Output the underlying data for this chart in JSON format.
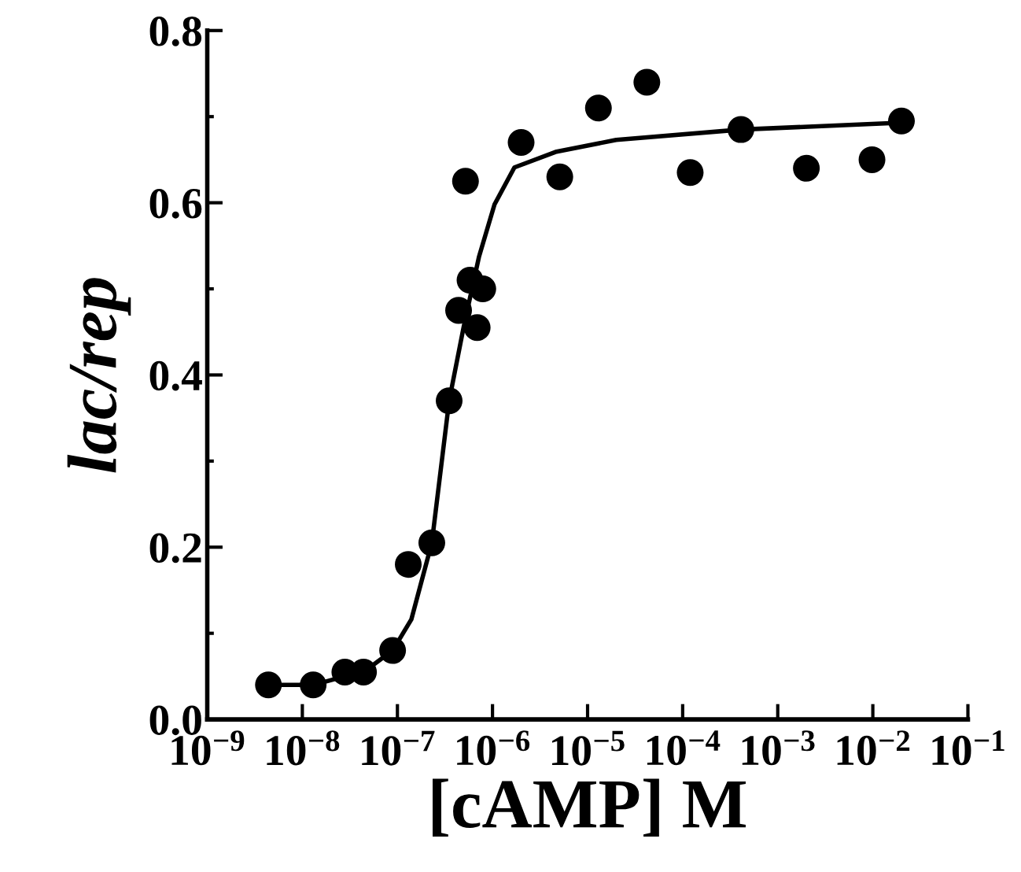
{
  "chart_data": {
    "type": "scatter",
    "xlabel": "[cAMP] M",
    "ylabel": "lac/rep",
    "log": "x",
    "grid": false,
    "legend": false,
    "xlim": [
      1e-09,
      0.1
    ],
    "ylim": [
      0,
      0.8
    ],
    "xticks": [
      {
        "value": 1e-09,
        "label": "10$^{−9}$"
      },
      {
        "value": 1e-08,
        "label": "10$^{−8}$"
      },
      {
        "value": 1e-07,
        "label": "10$^{−7}$"
      },
      {
        "value": 1e-06,
        "label": "10$^{−6}$"
      },
      {
        "value": 1e-05,
        "label": "10$^{−5}$"
      },
      {
        "value": 0.0001,
        "label": "10$^{−4}$"
      },
      {
        "value": 0.001,
        "label": "10$^{−3}$"
      },
      {
        "value": 0.01,
        "label": "10$^{−2}$"
      },
      {
        "value": 0.1,
        "label": "10$^{−1}$"
      }
    ],
    "yticks": [
      {
        "value": 0,
        "label": "0.0"
      },
      0.2,
      0.4,
      0.6,
      0.8
    ],
    "series": [
      {
        "color": "#000000",
        "marker": "circle",
        "x": [
          4.4e-09,
          1.3e-08,
          2.8e-08,
          4.4e-08,
          8.9e-08,
          1.3e-07,
          2.3e-07,
          3.5e-07,
          4.4e-07,
          5.2e-07,
          5.8e-07,
          6.9e-07,
          7.9e-07,
          2e-06,
          5.1e-06,
          1.3e-05,
          4.2e-05,
          0.00012,
          0.00041,
          0.002,
          0.0098,
          0.02
        ],
        "values": [
          0.04,
          0.04,
          0.055,
          0.055,
          0.08,
          0.18,
          0.205,
          0.37,
          0.475,
          0.625,
          0.51,
          0.455,
          0.5,
          0.67,
          0.63,
          0.71,
          0.74,
          0.635,
          0.685,
          0.64,
          0.65,
          0.695
        ]
      },
      {
        "type": "line",
        "color": "#000000",
        "marker": "none",
        "line_style": "solid",
        "x": [
          4.4e-09,
          1.3e-08,
          2.8e-08,
          4.4e-08,
          8.9e-08,
          1.4e-07,
          2.3e-07,
          3.5e-07,
          5e-07,
          7.2e-07,
          1.05e-06,
          1.7e-06,
          4.6e-06,
          2e-05,
          0.00041,
          0.02
        ],
        "values": [
          0.04,
          0.04,
          0.05,
          0.055,
          0.08,
          0.116,
          0.205,
          0.37,
          0.457,
          0.537,
          0.598,
          0.641,
          0.659,
          0.673,
          0.685,
          0.693
        ]
      }
    ]
  }
}
